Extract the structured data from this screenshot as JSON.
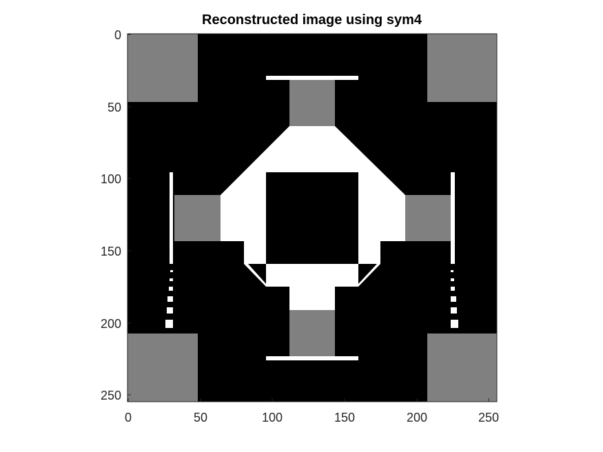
{
  "title": "Reconstructed image using sym4",
  "axes": {
    "x_ticks": [
      "0",
      "50",
      "100",
      "150",
      "200",
      "250"
    ],
    "y_ticks": [
      "0",
      "50",
      "100",
      "150",
      "200",
      "250"
    ]
  },
  "colors": {
    "black": "#000000",
    "gray": "#808080",
    "white": "#ffffff",
    "axis": "#262626"
  }
}
